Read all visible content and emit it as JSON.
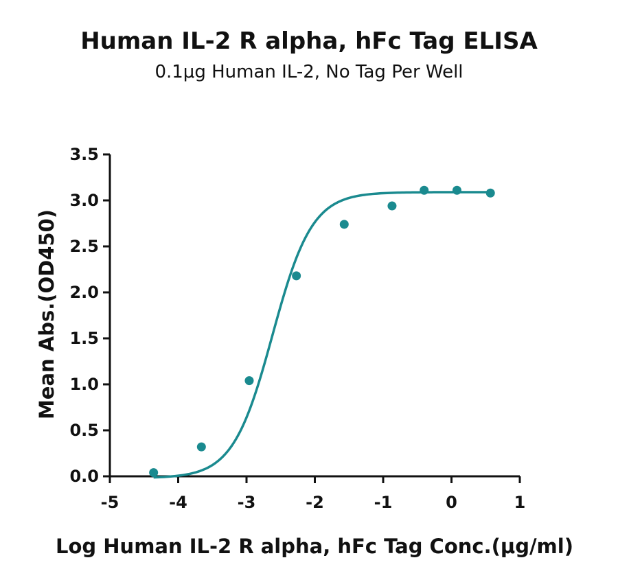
{
  "chart_data": {
    "type": "scatter",
    "title": "Human IL-2 R alpha, hFc Tag ELISA",
    "subtitle": "0.1μg Human IL-2, No Tag Per Well",
    "xlabel": "Log Human IL-2 R alpha, hFc Tag Conc.(μg/ml)",
    "ylabel": "Mean Abs.(OD450)",
    "xlim": [
      -5,
      1
    ],
    "ylim": [
      0,
      3.5
    ],
    "x_ticks": [
      "-5",
      "-4",
      "-3",
      "-2",
      "-1",
      "0",
      "1"
    ],
    "y_ticks": [
      "0.0",
      "0.5",
      "1.0",
      "1.5",
      "2.0",
      "2.5",
      "3.0",
      "3.5"
    ],
    "grid": false,
    "colors": {
      "series": "#1a8a8f",
      "axis": "#111111"
    },
    "series": [
      {
        "x": [
          -4.36,
          -3.66,
          -2.96,
          -2.27,
          -1.57,
          -0.87,
          -0.4,
          0.08,
          0.57
        ],
        "y": [
          0.04,
          0.32,
          1.04,
          2.18,
          2.74,
          2.94,
          3.11,
          3.11,
          3.08
        ]
      }
    ],
    "fit": {
      "model": "4PL",
      "bottom": -0.02,
      "top": 3.09,
      "log_ec50": -2.62,
      "hill": 1.5
    }
  }
}
